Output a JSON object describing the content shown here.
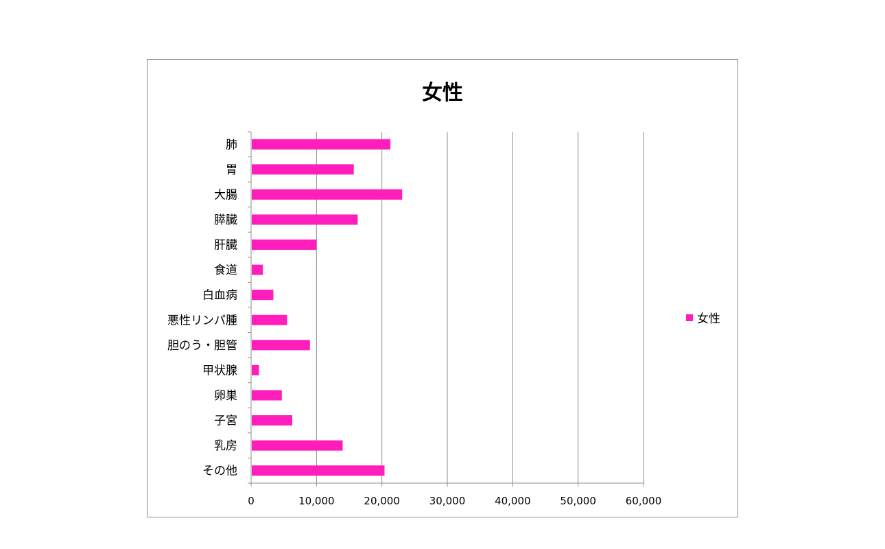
{
  "chart_data": {
    "type": "bar",
    "orientation": "horizontal",
    "title": "女性",
    "categories": [
      "肺",
      "胃",
      "大腸",
      "膵臓",
      "肝臓",
      "食道",
      "白血病",
      "悪性リンパ腫",
      "胆のう・胆管",
      "甲状腺",
      "卵巣",
      "子宮",
      "乳房",
      "その他"
    ],
    "series": [
      {
        "name": "女性",
        "color": "#ff1dbc",
        "values": [
          21300,
          15700,
          23100,
          16300,
          10000,
          1800,
          3400,
          5500,
          9000,
          1200,
          4700,
          6300,
          14000,
          20400
        ]
      }
    ],
    "xlim": [
      0,
      60000
    ],
    "xticks": [
      0,
      10000,
      20000,
      30000,
      40000,
      50000,
      60000
    ],
    "xtick_labels": [
      "0",
      "10,000",
      "20,000",
      "30,000",
      "40,000",
      "50,000",
      "60,000"
    ],
    "grid": "vertical",
    "legend_position": "right"
  }
}
